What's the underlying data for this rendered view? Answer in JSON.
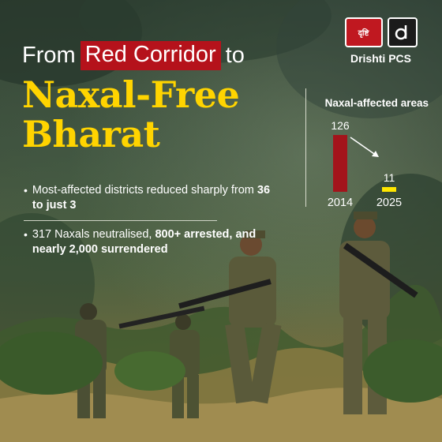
{
  "headline": {
    "pre": "From",
    "highlight": "Red Corridor",
    "post": "to",
    "big_line_1": "Naxal-Free",
    "big_line_2": "Bharat"
  },
  "bullets": [
    {
      "text_1": "Most-affected districts reduced sharply from ",
      "bold": "36 to just 3",
      "text_2": ""
    },
    {
      "text_1": "317 Naxals neutralised, ",
      "bold": "800+ arrested, and nearly 2,000 surrendered",
      "text_2": ""
    }
  ],
  "logo": {
    "badge_text": "दृष्टि",
    "badge_icon": "d-letter-icon",
    "name": "Drishti PCS"
  },
  "chart_data": {
    "type": "bar",
    "title": "Naxal-affected areas",
    "categories": [
      "2014",
      "2025"
    ],
    "values": [
      126,
      11
    ],
    "colors": [
      "#a3141b",
      "#ffe600"
    ],
    "annotation": "arrow from 2014 to 2025"
  }
}
